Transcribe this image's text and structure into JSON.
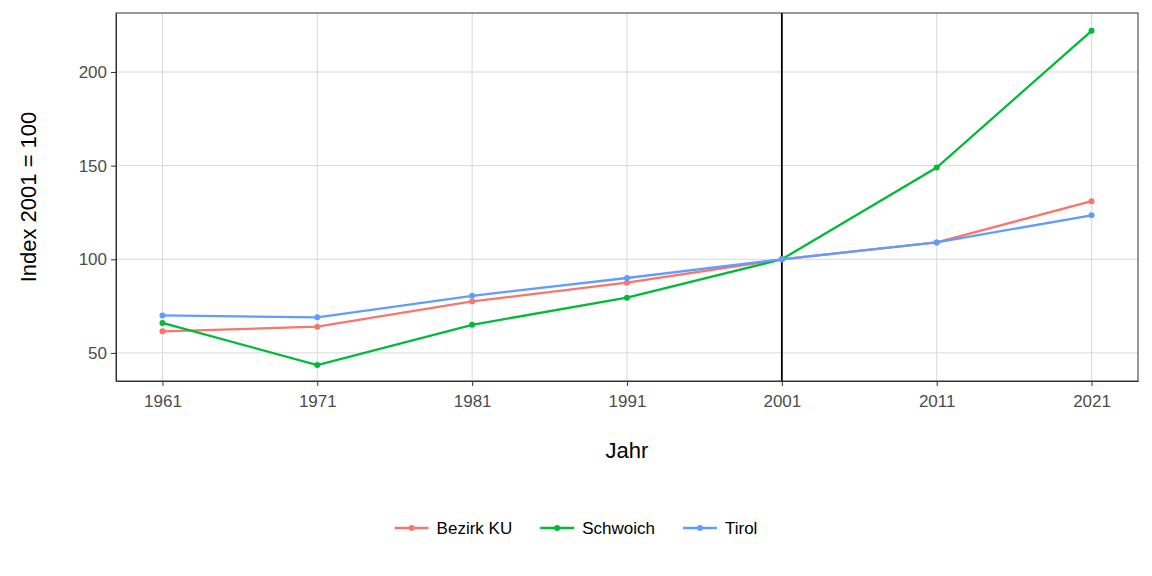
{
  "chart_data": {
    "type": "line",
    "x_label": "Jahr",
    "y_label": "Index 2001 = 100",
    "x": [
      1961,
      1971,
      1981,
      1991,
      2001,
      2011,
      2021
    ],
    "series": [
      {
        "name": "Bezirk KU",
        "color": "#F8766D",
        "marker": "circle",
        "values": [
          61.5,
          64,
          77.5,
          87.5,
          100,
          109,
          131
        ]
      },
      {
        "name": "Schwoich",
        "color": "#00BA38",
        "marker": "circle",
        "values": [
          66,
          43.5,
          65,
          79.5,
          100,
          149,
          222
        ]
      },
      {
        "name": "Tirol",
        "color": "#619CFF",
        "marker": "circle",
        "values": [
          70,
          69,
          80.5,
          90,
          100,
          109,
          123.5
        ]
      }
    ],
    "vline": 2001,
    "xlim": [
      1958,
      2024
    ],
    "xticks": [
      1961,
      1971,
      1981,
      1991,
      2001,
      2011,
      2021
    ],
    "ylim": [
      35,
      231.5
    ],
    "yticks": [
      50,
      100,
      150,
      200
    ],
    "grid": true,
    "legend": "bottom"
  }
}
